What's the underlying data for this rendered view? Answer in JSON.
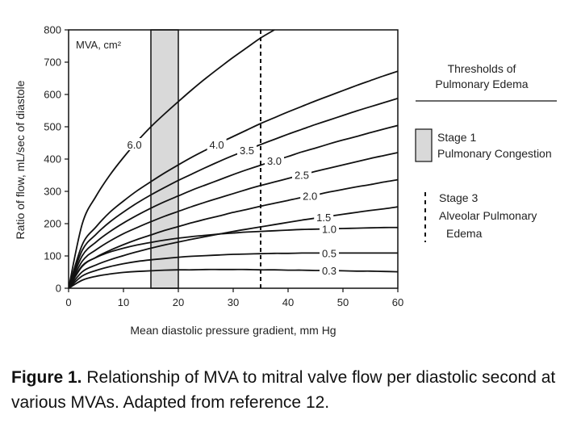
{
  "chart_data": {
    "type": "line",
    "title": "",
    "xlabel": "Mean diastolic pressure gradient, mm Hg",
    "ylabel": "Ratio of flow, mL/sec of diastole",
    "xlim": [
      0,
      60
    ],
    "ylim": [
      0,
      800
    ],
    "xticks": [
      0,
      10,
      20,
      30,
      40,
      50,
      60
    ],
    "yticks": [
      0,
      100,
      200,
      300,
      400,
      500,
      600,
      700,
      800
    ],
    "curve_header": "MVA, cm²",
    "x": [
      0,
      2.5,
      5,
      7.5,
      10,
      12.5,
      15,
      17.5,
      20,
      22.5,
      25,
      27.5,
      30,
      32.5,
      35,
      37.5,
      40,
      42.5,
      45,
      47.5,
      50,
      52.5,
      55,
      57.5,
      60
    ],
    "series": [
      {
        "name": "6.0",
        "label": "6.0",
        "values": [
          0,
          200,
          285,
          350,
          405,
          455,
          500,
          540,
          578,
          615,
          650,
          683,
          715,
          745,
          775,
          800,
          null,
          null,
          null,
          null,
          null,
          null,
          null,
          null,
          null
        ]
      },
      {
        "name": "4.0",
        "label": "4.0",
        "values": [
          0,
          135,
          190,
          235,
          270,
          302,
          330,
          357,
          382,
          406,
          428,
          450,
          470,
          490,
          510,
          528,
          546,
          563,
          580,
          596,
          612,
          628,
          643,
          658,
          672
        ]
      },
      {
        "name": "3.5",
        "label": "3.5",
        "values": [
          0,
          118,
          167,
          205,
          236,
          264,
          289,
          312,
          334,
          354,
          374,
          393,
          411,
          428,
          445,
          461,
          477,
          492,
          507,
          521,
          535,
          549,
          562,
          575,
          588
        ]
      },
      {
        "name": "3.0",
        "label": "3.0",
        "values": [
          0,
          101,
          143,
          175,
          202,
          226,
          248,
          268,
          286,
          304,
          320,
          336,
          352,
          367,
          381,
          395,
          408,
          422,
          434,
          447,
          459,
          470,
          482,
          493,
          504
        ]
      },
      {
        "name": "2.5",
        "label": "2.5",
        "values": [
          0,
          84,
          119,
          146,
          169,
          188,
          206,
          223,
          238,
          253,
          267,
          280,
          293,
          306,
          318,
          329,
          340,
          351,
          362,
          372,
          382,
          392,
          402,
          411,
          420
        ]
      },
      {
        "name": "2.0",
        "label": "2.0",
        "values": [
          0,
          68,
          96,
          117,
          135,
          151,
          165,
          179,
          191,
          203,
          214,
          224,
          235,
          244,
          254,
          263,
          272,
          281,
          289,
          298,
          306,
          314,
          321,
          329,
          336
        ]
      },
      {
        "name": "1.5",
        "label": "1.5",
        "values": [
          0,
          51,
          72,
          88,
          101,
          113,
          124,
          134,
          143,
          152,
          160,
          168,
          176,
          183,
          190,
          197,
          204,
          211,
          217,
          223,
          229,
          235,
          241,
          246,
          252
        ]
      },
      {
        "name": "1.0",
        "label": "1.0",
        "values": [
          0,
          70,
          95,
          112,
          124,
          134,
          142,
          149,
          155,
          160,
          164,
          168,
          171,
          174,
          176,
          178,
          180,
          182,
          183,
          184,
          185,
          186,
          187,
          188,
          188
        ]
      },
      {
        "name": "0.5",
        "label": "0.5",
        "values": [
          0,
          38,
          55,
          67,
          76,
          83,
          88,
          92,
          96,
          99,
          101,
          103,
          105,
          106,
          107,
          108,
          108,
          109,
          109,
          109,
          109,
          109,
          109,
          109,
          109
        ]
      },
      {
        "name": "0.3",
        "label": "0.3",
        "values": [
          0,
          25,
          37,
          44,
          49,
          52,
          54,
          56,
          57,
          57,
          58,
          58,
          58,
          58,
          57,
          57,
          56,
          56,
          55,
          55,
          54,
          53,
          53,
          52,
          51
        ]
      }
    ],
    "shaded_band": {
      "x_from": 15,
      "x_to": 20
    },
    "dashed_line": {
      "x": 35
    },
    "legend": {
      "title_line1": "Thresholds of",
      "title_line2": "Pulmonary Edema",
      "stage1_line1": "Stage 1",
      "stage1_line2": "Pulmonary Congestion",
      "stage3_line1": "Stage 3",
      "stage3_line2": "Alveolar Pulmonary",
      "stage3_line3": "Edema"
    }
  },
  "caption": {
    "prefix": "Figure 1.",
    "text": " Relationship of MVA to mitral valve flow per diastolic second at various MVAs. Adapted from reference 12."
  },
  "colors": {
    "band_fill": "#d9d9d9",
    "line": "#111111"
  }
}
